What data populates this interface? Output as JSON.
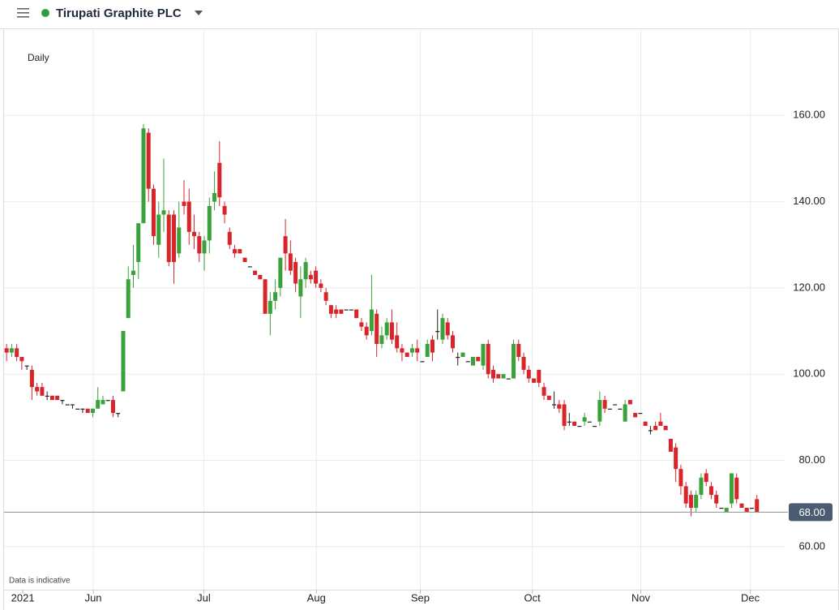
{
  "chart_data": {
    "type": "candlestick",
    "title": "Tirupati Graphite PLC",
    "subtitle": "Daily",
    "annotation": "Data is indicative",
    "up_color": "#3aa23a",
    "down_color": "#d9242a",
    "flat_color": "#222222",
    "grid": true,
    "ylim": [
      50,
      180
    ],
    "yticks": [
      {
        "value": 60,
        "label": "60.00"
      },
      {
        "value": 80,
        "label": "80.00"
      },
      {
        "value": 100,
        "label": "100.00"
      },
      {
        "value": 120,
        "label": "120.00"
      },
      {
        "value": 140,
        "label": "140.00"
      },
      {
        "value": 160,
        "label": "160.00"
      }
    ],
    "xlim": [
      -0.5,
      153
    ],
    "xticks": [
      {
        "value": 3.2,
        "label": "2021"
      },
      {
        "value": 17.1,
        "label": "Jun"
      },
      {
        "value": 38.9,
        "label": "Jul"
      },
      {
        "value": 61.1,
        "label": "Aug"
      },
      {
        "value": 81.6,
        "label": "Sep"
      },
      {
        "value": 103.7,
        "label": "Oct"
      },
      {
        "value": 125.1,
        "label": "Nov"
      },
      {
        "value": 146.7,
        "label": "Dec"
      }
    ],
    "last_price": {
      "value": 68,
      "label": "68.00"
    },
    "open": [
      106,
      105,
      106,
      104,
      102,
      101,
      97,
      97,
      95,
      95,
      95,
      94,
      93,
      93,
      92,
      92,
      92,
      91,
      92,
      93,
      94,
      94,
      91,
      96,
      113,
      123,
      126,
      135,
      156,
      143,
      130,
      137,
      137,
      137,
      128,
      140,
      140,
      133,
      132,
      128,
      131,
      140,
      149,
      139,
      133,
      129,
      129,
      127,
      125,
      124,
      123,
      122,
      114,
      117,
      120,
      132,
      128,
      126,
      118,
      122,
      123,
      124,
      121,
      119,
      116,
      115,
      115,
      115,
      115,
      115,
      112,
      111,
      110,
      114,
      107,
      109,
      112,
      109,
      106,
      105,
      105,
      106,
      103,
      104,
      108,
      110,
      108,
      112,
      109,
      104,
      104,
      103,
      102,
      104,
      102,
      107,
      101,
      100,
      99,
      99,
      99,
      107,
      104,
      101,
      99,
      101,
      97,
      95,
      93,
      93,
      93,
      89,
      89,
      88,
      89,
      89,
      88,
      89,
      94,
      92,
      93,
      92,
      89,
      94,
      91,
      91,
      89,
      87,
      88,
      89,
      88,
      85,
      83,
      78,
      74,
      72,
      69,
      72,
      77,
      74,
      72,
      69,
      68,
      70,
      76,
      70,
      69,
      69,
      71
    ],
    "high": [
      107,
      107,
      107,
      104,
      102,
      102,
      98,
      98,
      96,
      95,
      95,
      94,
      93,
      93,
      92,
      92,
      92,
      92,
      97,
      95,
      94,
      95,
      91,
      110,
      125,
      130,
      135,
      158,
      157,
      144,
      140,
      150,
      138,
      138,
      140,
      145,
      143,
      137,
      133,
      132,
      141,
      147,
      154,
      140,
      134,
      130,
      129,
      127,
      125,
      124,
      123,
      122,
      119,
      122,
      127,
      136,
      131,
      127,
      125,
      127,
      124,
      125,
      122,
      120,
      116,
      116,
      115,
      115,
      115,
      115,
      113,
      112,
      123,
      115,
      111,
      113,
      115,
      112,
      107,
      105,
      107,
      108,
      103,
      108,
      109,
      115,
      114,
      113,
      110,
      105,
      105,
      103,
      104,
      104,
      107,
      108,
      102,
      100,
      100,
      99,
      108,
      108,
      105,
      102,
      99,
      101,
      98,
      95,
      96,
      94,
      94,
      91,
      89,
      88,
      91,
      89,
      88,
      96,
      95,
      92,
      93,
      92,
      94,
      94,
      91,
      91,
      89,
      88,
      89,
      91,
      88,
      85,
      84,
      79,
      75,
      73,
      73,
      77,
      78,
      75,
      73,
      69,
      69,
      77,
      77,
      70,
      69,
      69,
      72
    ],
    "low": [
      103,
      104,
      103,
      101,
      101,
      94,
      95,
      95,
      94,
      94,
      94,
      93,
      93,
      92,
      92,
      91,
      91,
      90,
      92,
      93,
      94,
      90,
      90,
      96,
      113,
      120,
      122,
      135,
      140,
      130,
      127,
      133,
      125,
      121,
      127,
      137,
      130,
      129,
      126,
      124,
      128,
      138,
      139,
      135,
      129,
      127,
      128,
      126,
      125,
      123,
      122,
      114,
      109,
      115,
      118,
      124,
      123,
      119,
      113,
      120,
      121,
      120,
      119,
      116,
      113,
      113,
      114,
      115,
      115,
      113,
      110,
      108,
      109,
      104,
      106,
      108,
      107,
      105,
      103,
      104,
      104,
      103,
      103,
      104,
      103,
      108,
      107,
      108,
      105,
      102,
      104,
      103,
      102,
      103,
      101,
      99,
      98,
      99,
      99,
      99,
      99,
      103,
      100,
      98,
      98,
      97,
      94,
      94,
      92,
      91,
      87,
      88,
      88,
      88,
      88,
      89,
      88,
      88,
      91,
      92,
      93,
      92,
      89,
      93,
      90,
      91,
      88,
      86,
      87,
      88,
      87,
      82,
      75,
      72,
      69,
      67,
      68,
      71,
      74,
      71,
      69,
      69,
      68,
      69,
      70,
      69,
      68,
      69,
      68
    ],
    "close": [
      105,
      106,
      104,
      103,
      102,
      97,
      96,
      95,
      95,
      94,
      94,
      94,
      93,
      93,
      92,
      92,
      91,
      92,
      94,
      94,
      94,
      91,
      91,
      110,
      122,
      124,
      135,
      157,
      143,
      132,
      137,
      138,
      126,
      126,
      134,
      139,
      133,
      132,
      128,
      131,
      139,
      142,
      141,
      137,
      130,
      128,
      128,
      126,
      125,
      123,
      122,
      114,
      117,
      119,
      127,
      128,
      124,
      121,
      122,
      126,
      122,
      121,
      120,
      117,
      114,
      114,
      114,
      115,
      115,
      113,
      111,
      109,
      115,
      107,
      109,
      112,
      108,
      106,
      105,
      104,
      106,
      105,
      103,
      107,
      105,
      110,
      113,
      109,
      106,
      104,
      105,
      103,
      104,
      103,
      107,
      100,
      99,
      99,
      100,
      99,
      107,
      104,
      101,
      99,
      98,
      98,
      95,
      94,
      93,
      92,
      88,
      89,
      88,
      88,
      90,
      89,
      88,
      94,
      92,
      92,
      93,
      92,
      93,
      93,
      90,
      91,
      88,
      87,
      87,
      88,
      87,
      82,
      78,
      74,
      70,
      69,
      72,
      76,
      75,
      72,
      70,
      69,
      69,
      77,
      71,
      69,
      68,
      69,
      68
    ]
  }
}
